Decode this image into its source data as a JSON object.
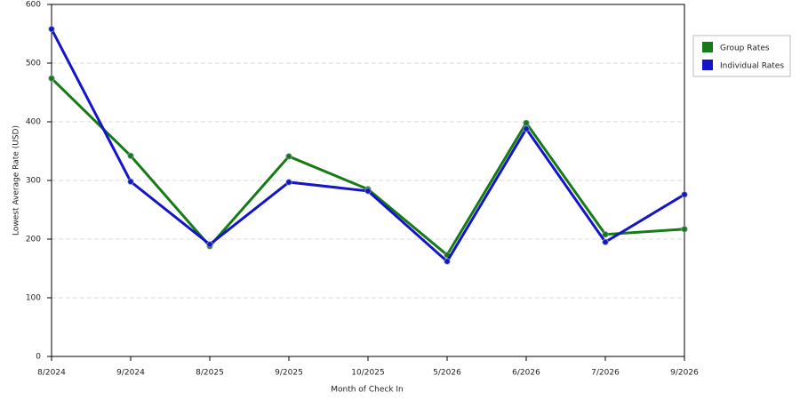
{
  "chart_data": {
    "type": "line",
    "x_label": "Month of Check In",
    "y_label": "Lowest Average Rate (USD)",
    "categories": [
      "8/2024",
      "9/2024",
      "8/2025",
      "9/2025",
      "10/2025",
      "5/2026",
      "6/2026",
      "7/2026",
      "9/2026"
    ],
    "series": [
      {
        "name": "Group Rates",
        "color": "#167a16",
        "values": [
          474,
          342,
          188,
          341,
          285,
          173,
          398,
          208,
          217
        ]
      },
      {
        "name": "Individual Rates",
        "color": "#1414c8",
        "values": [
          558,
          298,
          191,
          297,
          282,
          162,
          388,
          195,
          276
        ]
      }
    ],
    "ylim": [
      0,
      600
    ],
    "yticks": [
      0,
      100,
      200,
      300,
      400,
      500,
      600
    ],
    "grid": true,
    "legend": "right"
  }
}
